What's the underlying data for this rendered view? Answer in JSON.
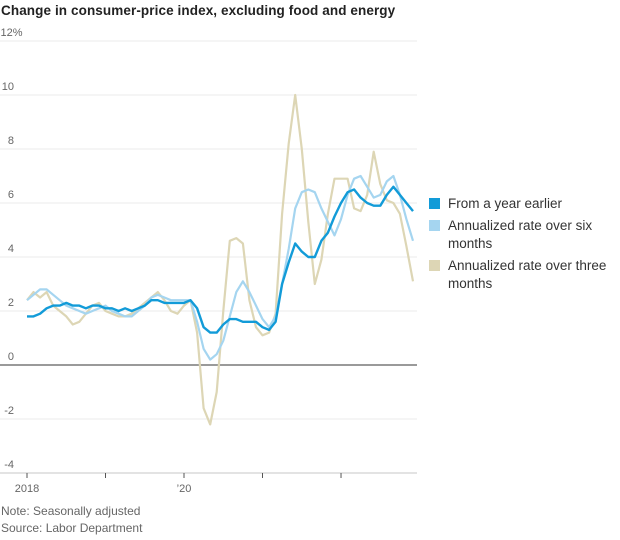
{
  "title": "Change in consumer-price index, excluding food and energy",
  "note": "Note: Seasonally adjusted",
  "source": "Source: Labor Department",
  "colors": {
    "background": "#ffffff",
    "title_text": "#222222",
    "axis_label_text": "#666666",
    "note_text": "#666666",
    "legend_text": "#333333",
    "gridline": "#ebebeb",
    "zero_line": "#9a9a9a",
    "baseline": "#e3e3e3",
    "tick": "#555555"
  },
  "chart_data": {
    "type": "line",
    "title": "Change in consumer-price index, excluding food and energy",
    "unit": "percent",
    "x_monthly_range": [
      "2018-01",
      "2022-12"
    ],
    "x_tick_month_indices": [
      0,
      12,
      24,
      36,
      48
    ],
    "x_tick_labels": [
      "2018",
      "",
      "’20",
      "",
      ""
    ],
    "ylim": [
      -4,
      12
    ],
    "ytick_step": 2,
    "ytick_top_label": "12%",
    "grid": "horizontal",
    "legend_position": "right",
    "series": [
      {
        "name": "From a year earlier",
        "color": "#129bd8",
        "values": [
          1.8,
          1.8,
          1.9,
          2.1,
          2.2,
          2.2,
          2.3,
          2.2,
          2.2,
          2.1,
          2.2,
          2.2,
          2.1,
          2.1,
          2.0,
          2.1,
          2.0,
          2.1,
          2.2,
          2.4,
          2.4,
          2.3,
          2.3,
          2.3,
          2.3,
          2.4,
          2.1,
          1.4,
          1.2,
          1.2,
          1.5,
          1.7,
          1.7,
          1.6,
          1.6,
          1.6,
          1.4,
          1.3,
          1.6,
          3.0,
          3.8,
          4.5,
          4.2,
          4.0,
          4.0,
          4.6,
          4.9,
          5.5,
          6.0,
          6.4,
          6.5,
          6.2,
          6.0,
          5.9,
          5.9,
          6.3,
          6.6,
          6.3,
          6.0,
          5.7
        ]
      },
      {
        "name": "Annualized rate over six months",
        "color": "#a5d5f0",
        "values": [
          2.4,
          2.6,
          2.8,
          2.8,
          2.6,
          2.4,
          2.2,
          2.1,
          2.0,
          1.9,
          2.0,
          2.1,
          2.2,
          2.0,
          1.9,
          1.8,
          1.8,
          2.0,
          2.2,
          2.5,
          2.6,
          2.5,
          2.4,
          2.4,
          2.4,
          2.4,
          1.6,
          0.6,
          0.2,
          0.4,
          0.9,
          1.8,
          2.7,
          3.1,
          2.7,
          2.2,
          1.7,
          1.4,
          1.8,
          3.0,
          4.3,
          5.8,
          6.4,
          6.5,
          6.4,
          5.8,
          5.3,
          4.8,
          5.4,
          6.3,
          6.9,
          7.0,
          6.6,
          6.2,
          6.3,
          6.8,
          7.0,
          6.3,
          5.4,
          4.6
        ]
      },
      {
        "name": "Annualized rate over three months",
        "color": "#ddd6b5",
        "values": [
          2.4,
          2.7,
          2.5,
          2.7,
          2.2,
          2.0,
          1.8,
          1.5,
          1.6,
          1.9,
          2.2,
          2.3,
          2.0,
          1.9,
          1.8,
          1.8,
          1.9,
          2.1,
          2.3,
          2.5,
          2.7,
          2.4,
          2.0,
          1.9,
          2.2,
          2.4,
          1.2,
          -1.6,
          -2.2,
          -1.0,
          2.0,
          4.6,
          4.7,
          4.5,
          2.4,
          1.4,
          1.1,
          1.2,
          1.9,
          5.6,
          8.2,
          10.0,
          8.0,
          5.3,
          3.0,
          3.9,
          5.6,
          6.9,
          6.9,
          6.9,
          5.8,
          5.7,
          6.3,
          7.9,
          6.7,
          6.1,
          6.0,
          5.6,
          4.4,
          3.1
        ]
      }
    ]
  }
}
